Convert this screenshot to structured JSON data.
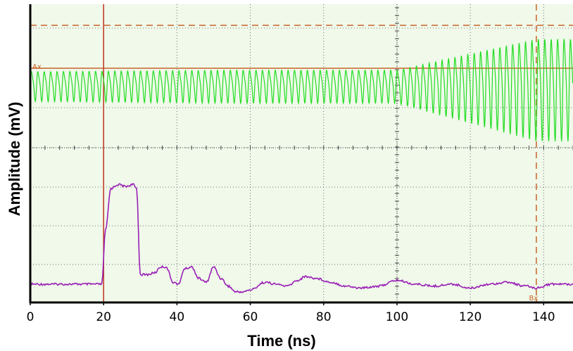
{
  "chart_data": {
    "type": "line",
    "title": "",
    "xlabel": "Time (ns)",
    "ylabel": "Amplitude (mV)",
    "xlim": [
      0,
      148
    ],
    "x_ticks": [
      0,
      20,
      40,
      60,
      80,
      100,
      120,
      140
    ],
    "grid": true,
    "colors": {
      "plot_background": "#f0f9ea",
      "grid": "#6e6e6e",
      "upper_trace": "#22dd22",
      "lower_trace": "#9a1fb6",
      "cursor": "#c8642a",
      "trigger_line": "#c0301e"
    },
    "cursors": {
      "ax": {
        "label": "Ax",
        "y_level": "upper",
        "style": "solid"
      },
      "ax_top": {
        "style": "dashed"
      },
      "bx": {
        "label": "Bx",
        "x": 138,
        "style": "dashed"
      },
      "trigger": {
        "x": 20,
        "style": "solid"
      }
    },
    "series": [
      {
        "trace": "upper",
        "description_points": [
          {
            "x": 0,
            "amplitude": 0.45
          },
          {
            "x": 55,
            "amplitude": 0.5
          },
          {
            "x": 100,
            "amplitude": 0.5
          },
          {
            "x": 138,
            "amplitude": 1.55
          },
          {
            "x": 148,
            "amplitude": 1.55
          }
        ],
        "period_ns": 1.75
      },
      {
        "trace": "lower",
        "x": [
          0,
          19.5,
          20.5,
          22,
          24,
          26,
          28,
          29,
          30,
          32,
          34,
          35.5,
          37,
          39,
          40.5,
          42,
          44,
          46,
          48,
          50,
          52,
          54,
          56,
          58,
          60,
          64,
          67,
          70,
          73,
          75,
          78,
          82,
          86,
          90,
          95,
          100,
          105,
          110,
          115,
          120,
          125,
          130,
          135,
          138,
          142,
          148
        ],
        "values": [
          0.0,
          0.0,
          1.4,
          2.5,
          2.6,
          2.55,
          2.6,
          2.5,
          0.25,
          0.25,
          0.3,
          0.45,
          0.45,
          0.05,
          0.0,
          0.4,
          0.45,
          0.15,
          0.05,
          0.45,
          0.15,
          -0.05,
          -0.2,
          -0.2,
          -0.15,
          0.05,
          0.0,
          -0.05,
          0.1,
          0.2,
          0.15,
          0.05,
          -0.05,
          -0.1,
          -0.05,
          0.1,
          0.0,
          -0.05,
          0.0,
          -0.1,
          0.0,
          0.05,
          -0.05,
          -0.1,
          0.0,
          0.0
        ]
      }
    ]
  }
}
